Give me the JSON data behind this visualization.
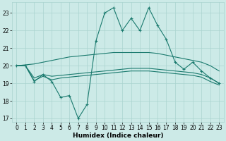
{
  "xlabel": "Humidex (Indice chaleur)",
  "bg_color": "#cceae7",
  "grid_color": "#aad4d0",
  "line_color": "#1a7a6e",
  "xlim": [
    -0.5,
    23.5
  ],
  "ylim": [
    16.8,
    23.6
  ],
  "yticks": [
    17,
    18,
    19,
    20,
    21,
    22,
    23
  ],
  "xticks": [
    0,
    1,
    2,
    3,
    4,
    5,
    6,
    7,
    8,
    9,
    10,
    11,
    12,
    13,
    14,
    15,
    16,
    17,
    18,
    19,
    20,
    21,
    22,
    23
  ],
  "line1_x": [
    0,
    1,
    2,
    3,
    4,
    5,
    6,
    7,
    8,
    9,
    10,
    11,
    12,
    13,
    14,
    15,
    16,
    17,
    18,
    19,
    20,
    21,
    22,
    23
  ],
  "line1_y": [
    20.0,
    20.0,
    19.1,
    19.5,
    19.1,
    18.2,
    18.3,
    17.0,
    17.8,
    21.4,
    23.0,
    23.3,
    22.0,
    22.7,
    22.0,
    23.3,
    22.3,
    21.5,
    20.2,
    19.8,
    20.2,
    19.7,
    19.3,
    19.0
  ],
  "line2_x": [
    0,
    1,
    2,
    3,
    4,
    5,
    6,
    7,
    8,
    9,
    10,
    11,
    12,
    13,
    14,
    15,
    16,
    17,
    18,
    19,
    20,
    21,
    22,
    23
  ],
  "line2_y": [
    20.0,
    20.0,
    19.3,
    19.5,
    19.4,
    19.45,
    19.5,
    19.55,
    19.6,
    19.65,
    19.7,
    19.75,
    19.8,
    19.85,
    19.85,
    19.85,
    19.8,
    19.75,
    19.7,
    19.65,
    19.6,
    19.5,
    19.3,
    19.0
  ],
  "line3_x": [
    0,
    1,
    2,
    3,
    4,
    5,
    6,
    7,
    8,
    9,
    10,
    11,
    12,
    13,
    14,
    15,
    16,
    17,
    18,
    19,
    20,
    21,
    22,
    23
  ],
  "line3_y": [
    20.0,
    20.05,
    20.1,
    20.2,
    20.3,
    20.4,
    20.5,
    20.55,
    20.6,
    20.65,
    20.7,
    20.75,
    20.75,
    20.75,
    20.75,
    20.75,
    20.7,
    20.6,
    20.5,
    20.4,
    20.3,
    20.2,
    20.0,
    19.7
  ],
  "line4_x": [
    0,
    1,
    2,
    3,
    4,
    5,
    6,
    7,
    8,
    9,
    10,
    11,
    12,
    13,
    14,
    15,
    16,
    17,
    18,
    19,
    20,
    21,
    22,
    23
  ],
  "line4_y": [
    20.0,
    20.0,
    19.15,
    19.4,
    19.2,
    19.3,
    19.35,
    19.4,
    19.45,
    19.5,
    19.55,
    19.6,
    19.65,
    19.7,
    19.7,
    19.7,
    19.65,
    19.6,
    19.55,
    19.5,
    19.45,
    19.35,
    19.1,
    18.9
  ],
  "label_fontsize": 6.5,
  "tick_fontsize": 5.5
}
